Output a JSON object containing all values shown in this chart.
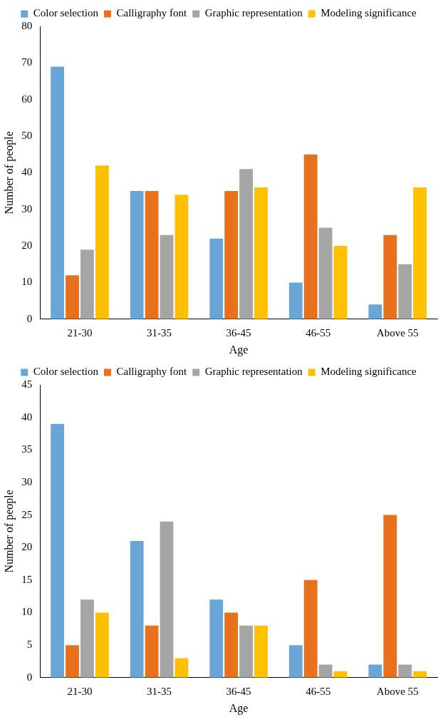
{
  "chart_data": [
    {
      "type": "bar",
      "xlabel": "Age",
      "ylabel": "Number of people",
      "categories": [
        "21-30",
        "31-35",
        "36-45",
        "46-55",
        "Above 55"
      ],
      "series": [
        {
          "name": "Color selection",
          "color": "#6aa5d8",
          "values": [
            69,
            35,
            22,
            10,
            4
          ]
        },
        {
          "name": "Calligraphy font",
          "color": "#e8711e",
          "values": [
            12,
            35,
            35,
            45,
            23
          ]
        },
        {
          "name": "Graphic representation",
          "color": "#a5a5a5",
          "values": [
            19,
            23,
            41,
            25,
            15
          ]
        },
        {
          "name": "Modeling significance",
          "color": "#ffc000",
          "values": [
            42,
            34,
            36,
            20,
            36
          ]
        }
      ],
      "ylim": [
        0,
        80
      ],
      "yticks": [
        0,
        10,
        20,
        30,
        40,
        50,
        60,
        70,
        80
      ],
      "grid": false,
      "legend": "top"
    },
    {
      "type": "bar",
      "xlabel": "Age",
      "ylabel": "Number of people",
      "categories": [
        "21-30",
        "31-35",
        "36-45",
        "46-55",
        "Above 55"
      ],
      "series": [
        {
          "name": "Color selection",
          "color": "#6aa5d8",
          "values": [
            39,
            21,
            12,
            5,
            2
          ]
        },
        {
          "name": "Calligraphy font",
          "color": "#e8711e",
          "values": [
            5,
            8,
            10,
            15,
            25
          ]
        },
        {
          "name": "Graphic representation",
          "color": "#a5a5a5",
          "values": [
            12,
            24,
            8,
            2,
            2
          ]
        },
        {
          "name": "Modeling significance",
          "color": "#ffc000",
          "values": [
            10,
            3,
            8,
            1,
            1
          ]
        }
      ],
      "ylim": [
        0,
        45
      ],
      "yticks": [
        0,
        5,
        10,
        15,
        20,
        25,
        30,
        35,
        40,
        45
      ],
      "grid": false,
      "legend": "top"
    }
  ]
}
